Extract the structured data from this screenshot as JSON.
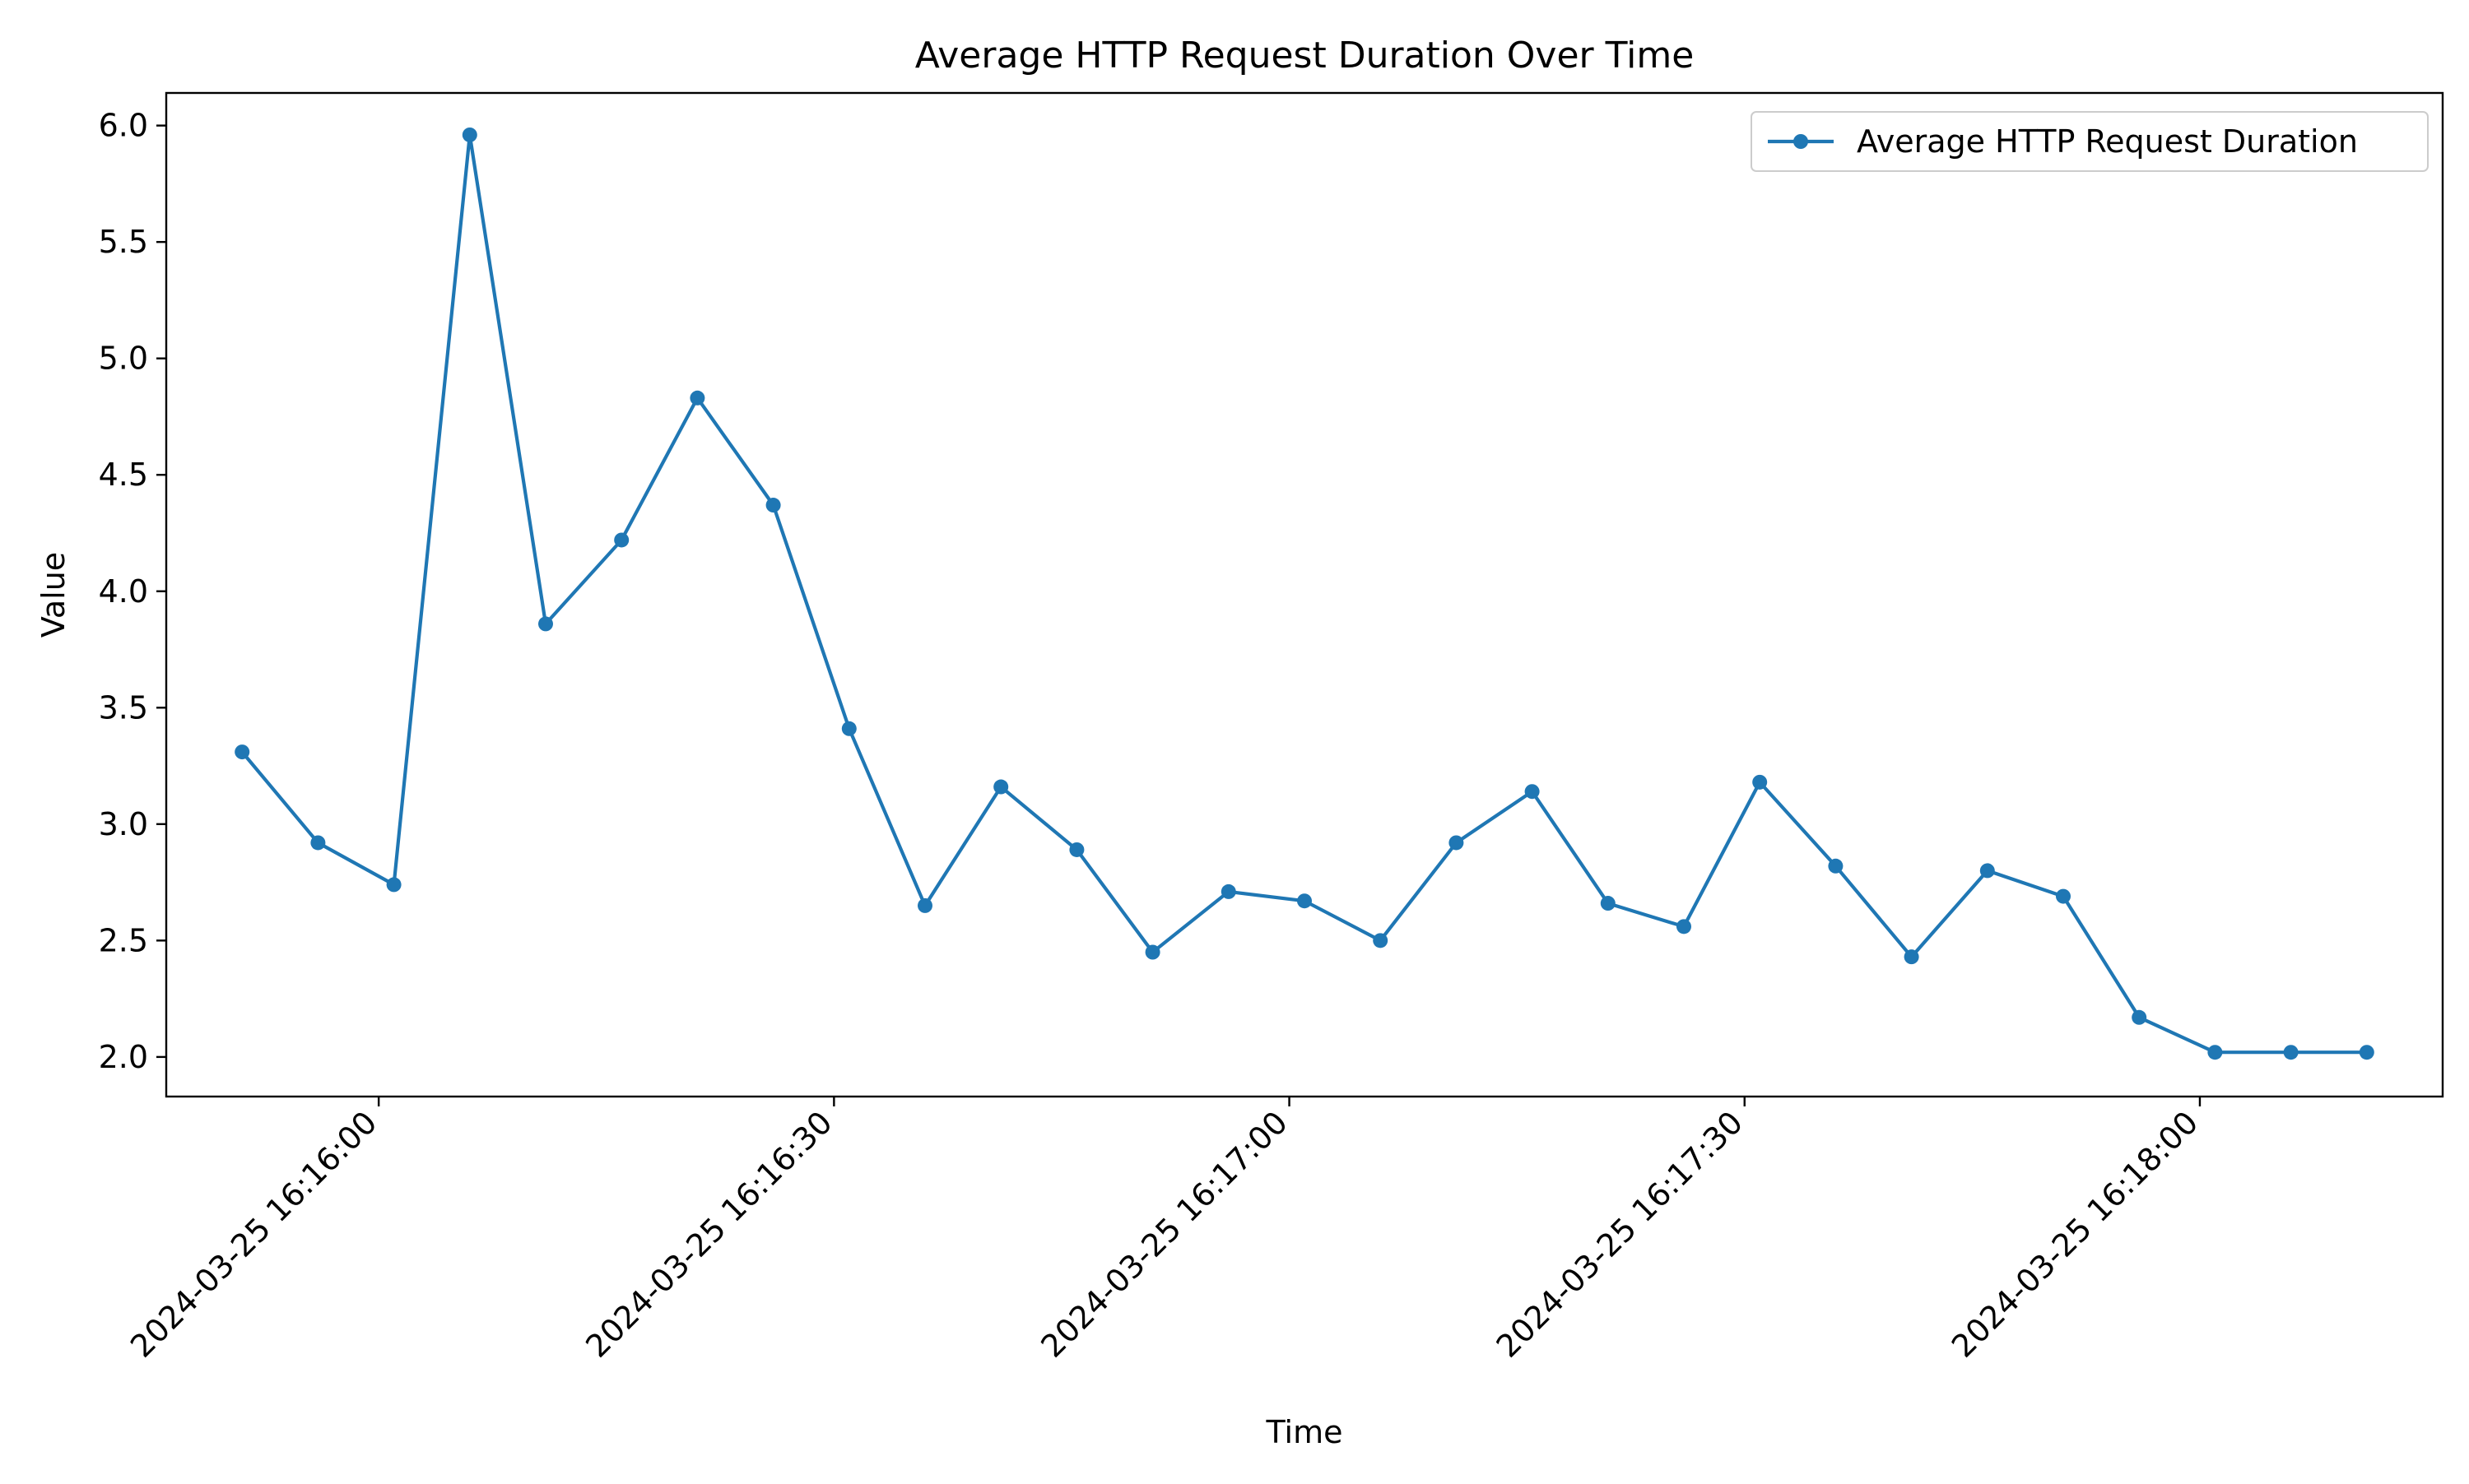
{
  "chart_data": {
    "type": "line",
    "title": "Average HTTP Request Duration Over Time",
    "xlabel": "Time",
    "ylabel": "Value",
    "x": [
      "2024-03-25 16:15:51",
      "2024-03-25 16:15:56",
      "2024-03-25 16:16:01",
      "2024-03-25 16:16:06",
      "2024-03-25 16:16:11",
      "2024-03-25 16:16:16",
      "2024-03-25 16:16:21",
      "2024-03-25 16:16:26",
      "2024-03-25 16:16:31",
      "2024-03-25 16:16:36",
      "2024-03-25 16:16:41",
      "2024-03-25 16:16:46",
      "2024-03-25 16:16:51",
      "2024-03-25 16:16:56",
      "2024-03-25 16:17:01",
      "2024-03-25 16:17:06",
      "2024-03-25 16:17:11",
      "2024-03-25 16:17:16",
      "2024-03-25 16:17:21",
      "2024-03-25 16:17:26",
      "2024-03-25 16:17:31",
      "2024-03-25 16:17:36",
      "2024-03-25 16:17:41",
      "2024-03-25 16:17:46",
      "2024-03-25 16:17:51",
      "2024-03-25 16:17:56",
      "2024-03-25 16:18:01",
      "2024-03-25 16:18:06",
      "2024-03-25 16:18:11"
    ],
    "series": [
      {
        "name": "Average HTTP Request Duration",
        "values": [
          3.31,
          2.92,
          2.74,
          5.96,
          3.86,
          4.22,
          4.83,
          4.37,
          3.41,
          2.65,
          3.16,
          2.89,
          2.45,
          2.71,
          2.67,
          2.5,
          2.92,
          3.14,
          2.66,
          2.56,
          3.18,
          2.82,
          2.43,
          2.8,
          2.69,
          2.17,
          2.02,
          2.02,
          2.02
        ],
        "color": "#1f77b4"
      }
    ],
    "xticks": [
      "2024-03-25 16:16:00",
      "2024-03-25 16:16:30",
      "2024-03-25 16:17:00",
      "2024-03-25 16:17:30",
      "2024-03-25 16:18:00"
    ],
    "yticks": [
      "2.0",
      "2.5",
      "3.0",
      "3.5",
      "4.0",
      "4.5",
      "5.0",
      "5.5",
      "6.0"
    ],
    "xlim": [
      "2024-03-25 16:15:46",
      "2024-03-25 16:18:16"
    ],
    "ylim": [
      1.83,
      6.14
    ],
    "grid": false,
    "legend_position": "top-right"
  }
}
